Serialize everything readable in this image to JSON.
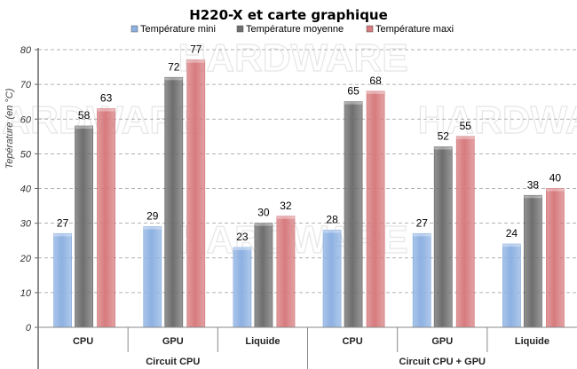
{
  "chart_data": {
    "type": "bar",
    "title": "H220-X  et carte graphique",
    "ylabel": "Tepérature  (en  °C)",
    "xlabel": "",
    "ylim": [
      0,
      80
    ],
    "yticks": [
      0,
      10,
      20,
      30,
      40,
      50,
      60,
      70,
      80
    ],
    "grid": true,
    "legend_position": "top",
    "categories": [
      "CPU",
      "GPU",
      "Liquide",
      "CPU",
      "GPU",
      "Liquide"
    ],
    "groups": [
      {
        "label": "Circuit CPU",
        "span": 3
      },
      {
        "label": "Circuit CPU + GPU",
        "span": 3
      }
    ],
    "series": [
      {
        "name": "Température mini",
        "color": "#8db1e2",
        "values": [
          27,
          29,
          23,
          28,
          27,
          24
        ]
      },
      {
        "name": "Température moyenne",
        "color": "#6e6e6e",
        "values": [
          58,
          72,
          30,
          65,
          52,
          38
        ]
      },
      {
        "name": "Température maxi",
        "color": "#d77b7e",
        "values": [
          63,
          77,
          32,
          68,
          55,
          40
        ]
      }
    ]
  },
  "watermark": "Le COMPTOIR du HARDWARE"
}
